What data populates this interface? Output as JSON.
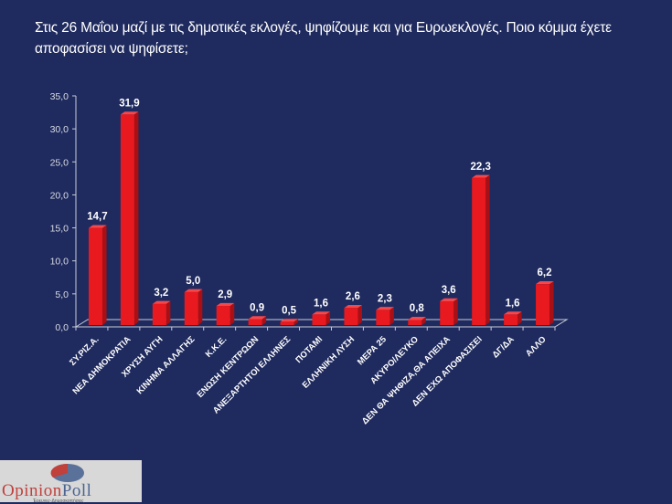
{
  "title": "Στις 26 Μαΐου μαζί με τις δημοτικές εκλογές, ψηφίζουμε και για Ευρωεκλογές. Ποιο κόμμα έχετε αποφασίσει να ψηφίσετε;",
  "logo": {
    "brand_part1": "Opinion",
    "brand_part2": "Poll",
    "subtitle": "Έρευνες-Δημοσκοπήσεις"
  },
  "colors": {
    "background": "#1f2a5e",
    "bar": "#e8191f",
    "bar_side": "#a81015",
    "bar_top": "#f4484c",
    "axis": "#c8ccd8"
  },
  "chart_data": {
    "type": "bar",
    "title": "Στις 26 Μαΐου μαζί με τις δημοτικές εκλογές, ψηφίζουμε και για Ευρωεκλογές. Ποιο κόμμα έχετε αποφασίσει να ψηφίσετε;",
    "xlabel": "",
    "ylabel": "",
    "ylim": [
      0,
      35
    ],
    "yticks": [
      "0,0",
      "5,0",
      "10,0",
      "15,0",
      "20,0",
      "25,0",
      "30,0",
      "35,0"
    ],
    "ytick_values": [
      0,
      5,
      10,
      15,
      20,
      25,
      30,
      35
    ],
    "grid": false,
    "legend": "none",
    "style": "3d-column",
    "categories": [
      "ΣΥ.ΡΙΖ.Α.",
      "ΝΕΑ ΔΗΜΟΚΡΑΤΙΑ",
      "ΧΡΥΣΗ ΑΥΓΗ",
      "ΚΙΝΗΜΑ ΑΛΛΑΓΗΣ",
      "Κ.Κ.Ε.",
      "ΕΝΩΣΗ ΚΕΝΤΡΩΩΝ",
      "ΑΝΕΞΑΡΤΗΤΟΙ ΕΛΛΗΝΕΣ",
      "ΠΟΤΑΜΙ",
      "ΕΛΛΗΝΙΚΗ ΛΥΣΗ",
      "ΜΕΡΑ 25",
      "ΑΚΥΡΟ/ΛΕΥΚΟ",
      "ΔΕΝ ΘΑ ΨΗΦΙΖΑ,ΘΑ ΑΠΕΙΧΑ",
      "ΔΕΝ ΕΧΩ ΑΠΟΦΑΣΙΣΕΙ",
      "ΔΓ/ΔΑ",
      "ΑΛΛΟ"
    ],
    "values": [
      14.7,
      31.9,
      3.2,
      5.0,
      2.9,
      0.9,
      0.5,
      1.6,
      2.6,
      2.3,
      0.8,
      3.6,
      22.3,
      1.6,
      6.2
    ],
    "value_labels": [
      "14,7",
      "31,9",
      "3,2",
      "5,0",
      "2,9",
      "0,9",
      "0,5",
      "1,6",
      "2,6",
      "2,3",
      "0,8",
      "3,6",
      "22,3",
      "1,6",
      "6,2"
    ]
  }
}
